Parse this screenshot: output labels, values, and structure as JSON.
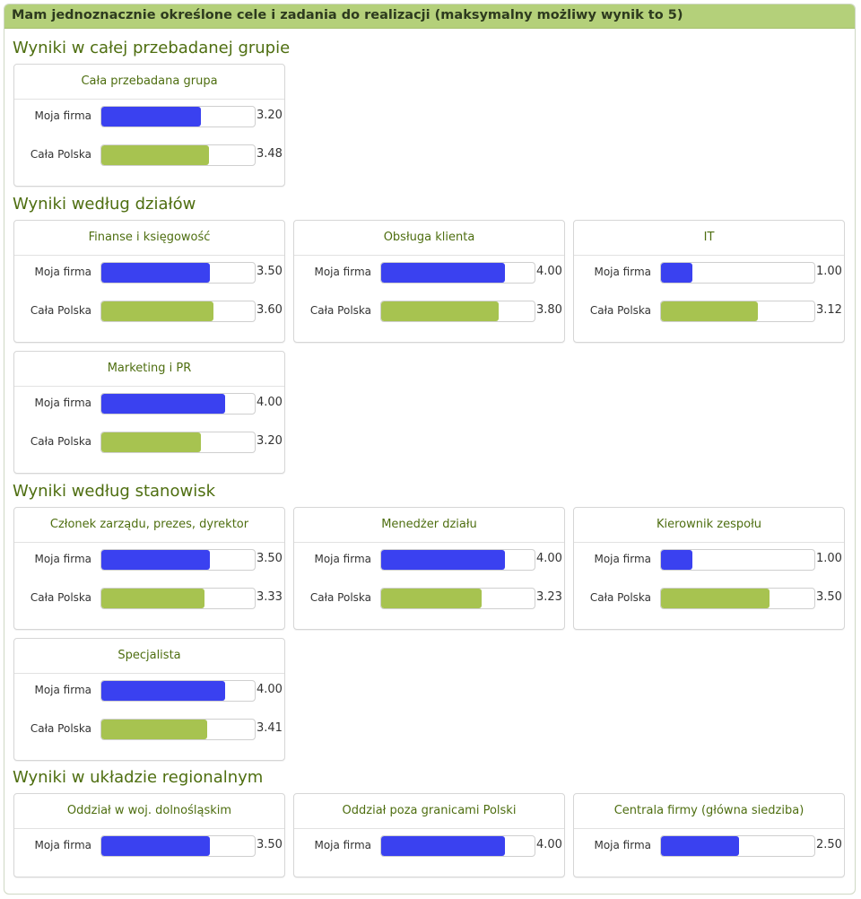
{
  "page": {
    "title": "Mam jednoznacznie określone cele i zadania do realizacji (maksymalny możliwy wynik to 5)",
    "max": 5
  },
  "colors": {
    "moja_firma": "#3a41f0",
    "cala_polska": "#a7c350",
    "header": "#b4d07a",
    "title_text": "#4e6e10"
  },
  "chart_data": [
    {
      "section": "Wyniki w całej przebadanej grupie",
      "type": "bar",
      "xlim": [
        0,
        5
      ],
      "panels": [
        {
          "title": "Cała przebadana grupa",
          "bars": [
            {
              "label": "Moja firma",
              "value": 3.2,
              "display": "3.20"
            },
            {
              "label": "Cała Polska",
              "value": 3.48,
              "display": "3.48"
            }
          ]
        }
      ]
    },
    {
      "section": "Wyniki według działów",
      "type": "bar",
      "xlim": [
        0,
        5
      ],
      "panels": [
        {
          "title": "Finanse i księgowość",
          "bars": [
            {
              "label": "Moja firma",
              "value": 3.5,
              "display": "3.50"
            },
            {
              "label": "Cała Polska",
              "value": 3.6,
              "display": "3.60"
            }
          ]
        },
        {
          "title": "Obsługa klienta",
          "bars": [
            {
              "label": "Moja firma",
              "value": 4.0,
              "display": "4.00"
            },
            {
              "label": "Cała Polska",
              "value": 3.8,
              "display": "3.80"
            }
          ]
        },
        {
          "title": "IT",
          "bars": [
            {
              "label": "Moja firma",
              "value": 1.0,
              "display": "1.00"
            },
            {
              "label": "Cała Polska",
              "value": 3.12,
              "display": "3.12"
            }
          ]
        },
        {
          "title": "Marketing i PR",
          "bars": [
            {
              "label": "Moja firma",
              "value": 4.0,
              "display": "4.00"
            },
            {
              "label": "Cała Polska",
              "value": 3.2,
              "display": "3.20"
            }
          ]
        }
      ]
    },
    {
      "section": "Wyniki według stanowisk",
      "type": "bar",
      "xlim": [
        0,
        5
      ],
      "panels": [
        {
          "title": "Członek zarządu, prezes, dyrektor",
          "bars": [
            {
              "label": "Moja firma",
              "value": 3.5,
              "display": "3.50"
            },
            {
              "label": "Cała Polska",
              "value": 3.33,
              "display": "3.33"
            }
          ]
        },
        {
          "title": "Menedżer działu",
          "bars": [
            {
              "label": "Moja firma",
              "value": 4.0,
              "display": "4.00"
            },
            {
              "label": "Cała Polska",
              "value": 3.23,
              "display": "3.23"
            }
          ]
        },
        {
          "title": "Kierownik zespołu",
          "bars": [
            {
              "label": "Moja firma",
              "value": 1.0,
              "display": "1.00"
            },
            {
              "label": "Cała Polska",
              "value": 3.5,
              "display": "3.50"
            }
          ]
        },
        {
          "title": "Specjalista",
          "bars": [
            {
              "label": "Moja firma",
              "value": 4.0,
              "display": "4.00"
            },
            {
              "label": "Cała Polska",
              "value": 3.41,
              "display": "3.41"
            }
          ]
        }
      ]
    },
    {
      "section": "Wyniki w układzie regionalnym",
      "type": "bar",
      "xlim": [
        0,
        5
      ],
      "panels": [
        {
          "title": "Oddział w woj. dolnośląskim",
          "bars": [
            {
              "label": "Moja firma",
              "value": 3.5,
              "display": "3.50"
            }
          ]
        },
        {
          "title": "Oddział poza granicami Polski",
          "bars": [
            {
              "label": "Moja firma",
              "value": 4.0,
              "display": "4.00"
            }
          ]
        },
        {
          "title": "Centrala firmy (główna siedziba)",
          "bars": [
            {
              "label": "Moja firma",
              "value": 2.5,
              "display": "2.50"
            }
          ]
        }
      ]
    }
  ]
}
